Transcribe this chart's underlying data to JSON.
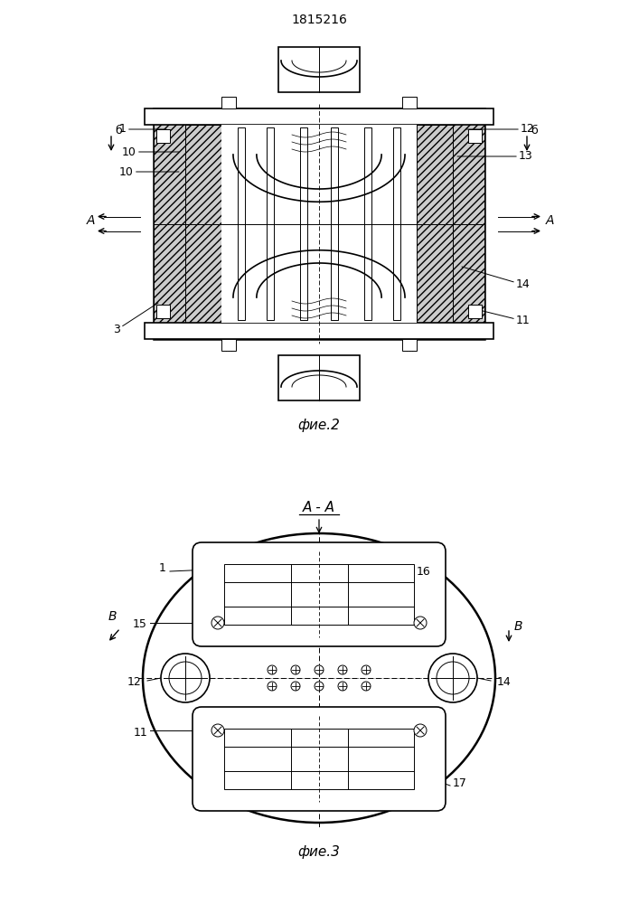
{
  "patent_number": "1815216",
  "fig2_caption": "фие.2",
  "fig3_caption": "фие.3",
  "fig3_section_label": "A - A",
  "background_color": "#ffffff",
  "line_color": "#000000"
}
